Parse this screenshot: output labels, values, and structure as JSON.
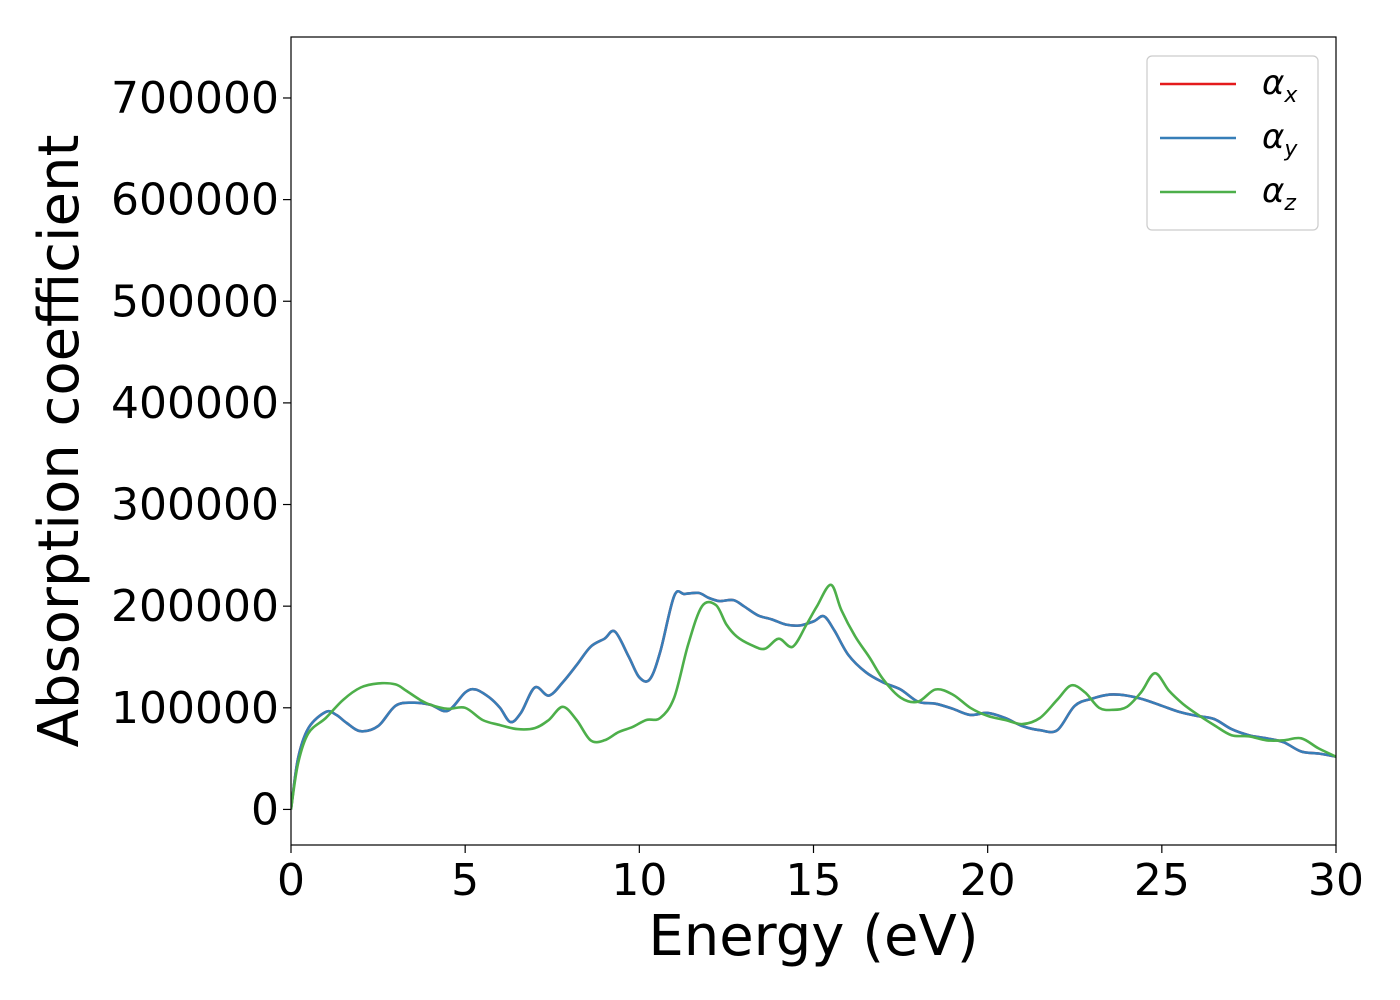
{
  "chart_data": {
    "type": "line",
    "title": "",
    "xlabel": "Energy (eV)",
    "ylabel": "Absorption coefficient",
    "xlim": [
      0,
      30
    ],
    "ylim": [
      -35000,
      760000
    ],
    "x_ticks": [
      0,
      5,
      10,
      15,
      20,
      25,
      30
    ],
    "y_ticks": [
      0,
      100000,
      200000,
      300000,
      400000,
      500000,
      600000,
      700000
    ],
    "grid": false,
    "legend_position": "top-right",
    "series": [
      {
        "name": "αx",
        "symbol": "α",
        "subscript": "x",
        "color": "#e41a1c",
        "x": [
          0,
          0.2,
          0.5,
          1,
          1.3,
          1.6,
          2,
          2.5,
          3,
          3.5,
          4,
          4.5,
          5,
          5.3,
          5.7,
          6,
          6.3,
          6.6,
          7,
          7.4,
          7.8,
          8.2,
          8.6,
          9,
          9.3,
          9.7,
          10,
          10.3,
          10.6,
          11,
          11.3,
          11.7,
          12,
          12.3,
          12.7,
          13,
          13.4,
          13.8,
          14.2,
          14.6,
          15,
          15.3,
          15.6,
          16,
          16.5,
          17,
          17.5,
          18,
          18.5,
          19,
          19.5,
          20,
          20.5,
          21,
          21.5,
          22,
          22.5,
          23,
          23.5,
          24,
          24.5,
          25,
          25.5,
          26,
          26.5,
          27,
          27.5,
          28,
          28.5,
          29,
          29.5,
          30
        ],
        "y": [
          0,
          50000,
          80000,
          96000,
          93000,
          85000,
          77000,
          82000,
          102000,
          105000,
          103000,
          97000,
          115000,
          118000,
          110000,
          100000,
          86000,
          95000,
          120000,
          112000,
          125000,
          142000,
          160000,
          168000,
          175000,
          150000,
          130000,
          128000,
          155000,
          210000,
          212000,
          213000,
          208000,
          205000,
          206000,
          200000,
          191000,
          187000,
          182000,
          181000,
          185000,
          190000,
          176000,
          152000,
          135000,
          125000,
          118000,
          106000,
          104000,
          99000,
          93000,
          95000,
          90000,
          82000,
          78000,
          78000,
          102000,
          109000,
          113000,
          112000,
          108000,
          102000,
          96000,
          92000,
          89000,
          79000,
          73000,
          70000,
          66000,
          57000,
          55000,
          52000
        ]
      },
      {
        "name": "αy",
        "symbol": "α",
        "subscript": "y",
        "color": "#377eb8",
        "x": [
          0,
          0.2,
          0.5,
          1,
          1.3,
          1.6,
          2,
          2.5,
          3,
          3.5,
          4,
          4.5,
          5,
          5.3,
          5.7,
          6,
          6.3,
          6.6,
          7,
          7.4,
          7.8,
          8.2,
          8.6,
          9,
          9.3,
          9.7,
          10,
          10.3,
          10.6,
          11,
          11.3,
          11.7,
          12,
          12.3,
          12.7,
          13,
          13.4,
          13.8,
          14.2,
          14.6,
          15,
          15.3,
          15.6,
          16,
          16.5,
          17,
          17.5,
          18,
          18.5,
          19,
          19.5,
          20,
          20.5,
          21,
          21.5,
          22,
          22.5,
          23,
          23.5,
          24,
          24.5,
          25,
          25.5,
          26,
          26.5,
          27,
          27.5,
          28,
          28.5,
          29,
          29.5,
          30
        ],
        "y": [
          0,
          50000,
          80000,
          96000,
          93000,
          85000,
          77000,
          82000,
          102000,
          105000,
          103000,
          97000,
          115000,
          118000,
          110000,
          100000,
          86000,
          95000,
          120000,
          112000,
          125000,
          142000,
          160000,
          168000,
          175000,
          150000,
          130000,
          128000,
          155000,
          210000,
          212000,
          213000,
          208000,
          205000,
          206000,
          200000,
          191000,
          187000,
          182000,
          181000,
          185000,
          190000,
          176000,
          152000,
          135000,
          125000,
          118000,
          106000,
          104000,
          99000,
          93000,
          95000,
          90000,
          82000,
          78000,
          78000,
          102000,
          109000,
          113000,
          112000,
          108000,
          102000,
          96000,
          92000,
          89000,
          79000,
          73000,
          70000,
          66000,
          57000,
          55000,
          52000
        ]
      },
      {
        "name": "αz",
        "symbol": "α",
        "subscript": "z",
        "color": "#4daf4a",
        "x": [
          0,
          0.2,
          0.5,
          1,
          1.5,
          2,
          2.5,
          3,
          3.3,
          3.7,
          4,
          4.5,
          5,
          5.5,
          6,
          6.5,
          7,
          7.4,
          7.8,
          8.2,
          8.6,
          9,
          9.4,
          9.8,
          10.2,
          10.6,
          11,
          11.4,
          11.8,
          12.2,
          12.5,
          12.8,
          13.2,
          13.6,
          14,
          14.4,
          14.8,
          15.1,
          15.5,
          15.8,
          16.2,
          16.6,
          17,
          17.5,
          18,
          18.5,
          19,
          19.5,
          20,
          20.5,
          21,
          21.5,
          22,
          22.4,
          22.8,
          23.2,
          23.6,
          24,
          24.4,
          24.8,
          25.2,
          25.6,
          26,
          26.5,
          27,
          27.5,
          28,
          28.5,
          29,
          29.5,
          30
        ],
        "y": [
          0,
          45000,
          75000,
          90000,
          108000,
          120000,
          124000,
          123000,
          117000,
          108000,
          103000,
          99000,
          100000,
          88000,
          83000,
          79000,
          80000,
          88000,
          101000,
          88000,
          68000,
          68000,
          76000,
          81000,
          88000,
          90000,
          110000,
          162000,
          200000,
          201000,
          182000,
          170000,
          162000,
          158000,
          168000,
          160000,
          182000,
          200000,
          221000,
          196000,
          170000,
          150000,
          128000,
          110000,
          106000,
          118000,
          113000,
          100000,
          92000,
          88000,
          84000,
          90000,
          108000,
          122000,
          115000,
          100000,
          98000,
          101000,
          115000,
          134000,
          117000,
          104000,
          94000,
          83000,
          73000,
          72000,
          68000,
          68000,
          70000,
          60000,
          52000
        ]
      }
    ]
  }
}
